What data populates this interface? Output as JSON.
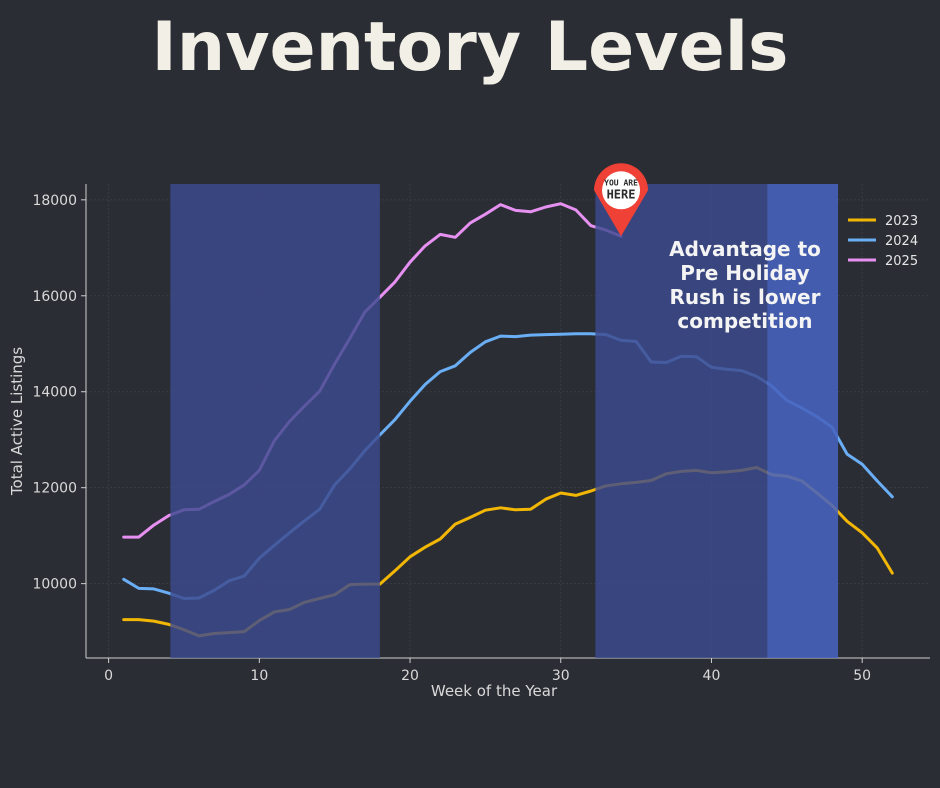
{
  "header": {
    "title": "Inventory Levels"
  },
  "chart_data": {
    "type": "line",
    "title": "Inventory Levels",
    "xlabel": "Week of the Year",
    "ylabel": "Total Active Listings",
    "xlim": [
      -1.5,
      54.5
    ],
    "ylim": [
      8450,
      18330
    ],
    "xticks": [
      0,
      10,
      20,
      30,
      40,
      50
    ],
    "yticks": [
      10000,
      12000,
      14000,
      16000,
      18000
    ],
    "grid": true,
    "legend": "top-right",
    "shaded_regions": [
      {
        "x0": 4.1,
        "x1": 18,
        "color": "#3d4b8f",
        "opacity": 0.82
      },
      {
        "x0": 32.3,
        "x1": 43.7,
        "color": "#3d4b8f",
        "opacity": 0.82
      },
      {
        "x0": 43.7,
        "x1": 48.4,
        "color": "#4763be",
        "opacity": 0.88
      }
    ],
    "series": [
      {
        "name": "2023",
        "color": "#f2b705",
        "x": [
          1,
          2,
          3,
          4,
          5,
          6,
          7,
          8,
          9,
          10,
          11,
          12,
          13,
          14,
          15,
          16,
          17,
          18,
          19,
          20,
          21,
          22,
          23,
          24,
          25,
          26,
          27,
          28,
          29,
          30,
          31,
          32,
          33,
          34,
          35,
          36,
          37,
          38,
          39,
          40,
          41,
          42,
          43,
          44,
          45,
          46,
          47,
          48,
          49,
          50,
          51,
          52
        ],
        "values": [
          9250,
          9250,
          9220,
          9150,
          9040,
          8910,
          8960,
          8980,
          9000,
          9230,
          9410,
          9460,
          9610,
          9690,
          9770,
          9980,
          9990,
          9990,
          10270,
          10560,
          10760,
          10930,
          11240,
          11380,
          11530,
          11580,
          11540,
          11550,
          11760,
          11890,
          11840,
          11930,
          12040,
          12080,
          12110,
          12150,
          12290,
          12340,
          12360,
          12310,
          12330,
          12360,
          12420,
          12270,
          12240,
          12140,
          11890,
          11630,
          11300,
          11060,
          10740,
          10220
        ]
      },
      {
        "name": "2024",
        "color": "#6aaef5",
        "x": [
          1,
          2,
          3,
          4,
          5,
          6,
          7,
          8,
          9,
          10,
          11,
          12,
          13,
          14,
          15,
          16,
          17,
          18,
          19,
          20,
          21,
          22,
          23,
          24,
          25,
          26,
          27,
          28,
          29,
          30,
          31,
          32,
          33,
          34,
          35,
          36,
          37,
          38,
          39,
          40,
          41,
          42,
          43,
          44,
          45,
          46,
          47,
          48,
          49,
          50,
          51,
          52
        ],
        "values": [
          10090,
          9900,
          9890,
          9800,
          9690,
          9700,
          9860,
          10060,
          10160,
          10530,
          10800,
          11060,
          11310,
          11550,
          12060,
          12390,
          12770,
          13100,
          13420,
          13800,
          14150,
          14420,
          14540,
          14820,
          15040,
          15160,
          15150,
          15180,
          15190,
          15200,
          15210,
          15210,
          15190,
          15070,
          15050,
          14620,
          14610,
          14740,
          14730,
          14510,
          14470,
          14440,
          14320,
          14120,
          13820,
          13660,
          13480,
          13260,
          12700,
          12490,
          12140,
          11810
        ]
      },
      {
        "name": "2025",
        "color": "#e691f2",
        "x": [
          1,
          2,
          3,
          4,
          5,
          6,
          7,
          8,
          9,
          10,
          11,
          12,
          13,
          14,
          15,
          16,
          17,
          18,
          19,
          20,
          21,
          22,
          23,
          24,
          25,
          26,
          27,
          28,
          29,
          30,
          31,
          32,
          33,
          34
        ],
        "values": [
          10970,
          10970,
          11220,
          11420,
          11540,
          11550,
          11710,
          11860,
          12060,
          12360,
          12980,
          13380,
          13700,
          14010,
          14580,
          15110,
          15660,
          15970,
          16290,
          16700,
          17040,
          17280,
          17220,
          17520,
          17700,
          17900,
          17780,
          17750,
          17850,
          17920,
          17790,
          17460,
          17370,
          17240
        ]
      }
    ],
    "annotations": [
      {
        "lines": [
          "Advantage to",
          "Pre Holiday",
          "Rush is lower",
          "competition"
        ]
      }
    ],
    "marker": {
      "x": 34,
      "y": 17240,
      "lines": [
        "YOU ARE",
        "HERE"
      ]
    }
  }
}
